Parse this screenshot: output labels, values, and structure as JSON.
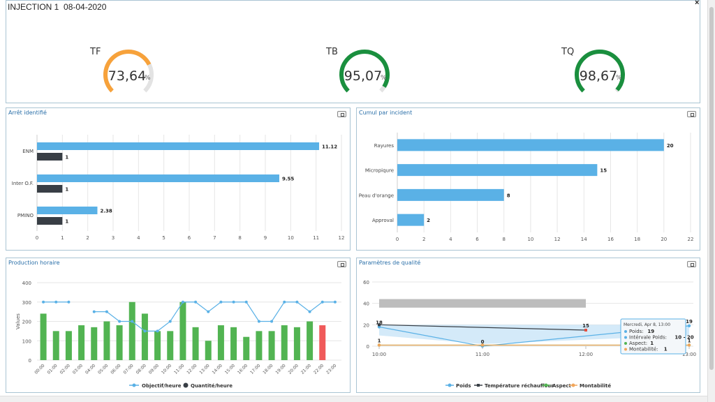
{
  "header": {
    "title": "INJECTION 1",
    "date": "08-04-2020",
    "close_label": "×"
  },
  "gauges": [
    {
      "label": "TF",
      "value": 73.64,
      "value_text": "73,64",
      "unit": "%",
      "color": "#f7a23b"
    },
    {
      "label": "TB",
      "value": 95.07,
      "value_text": "95,07",
      "unit": "%",
      "color": "#1a8f3e"
    },
    {
      "label": "TQ",
      "value": 98.67,
      "value_text": "98,67",
      "unit": "%",
      "color": "#1a8f3e"
    }
  ],
  "chart_data": [
    {
      "id": "arret",
      "type": "bar",
      "orientation": "horizontal",
      "title": "Arrêt identifié",
      "categories": [
        "ENM",
        "Inter O.F.",
        "PMINO"
      ],
      "series": [
        {
          "values": [
            11.12,
            9.55,
            2.38
          ],
          "labels": [
            "11.12",
            "9.55",
            "2.38"
          ],
          "color": "#5ab1e6"
        },
        {
          "values": [
            1,
            1,
            1
          ],
          "labels": [
            "1",
            "1",
            "1"
          ],
          "color": "#383e45"
        }
      ],
      "xlim": [
        0,
        12
      ],
      "xticks": [
        0,
        1,
        2,
        3,
        4,
        5,
        6,
        7,
        8,
        9,
        10,
        11,
        12
      ]
    },
    {
      "id": "cumul",
      "type": "bar",
      "orientation": "horizontal",
      "title": "Cumul par incident",
      "categories": [
        "Rayures",
        "Micropiqure",
        "Peau d'orange",
        "Approval"
      ],
      "values": [
        20,
        15,
        8,
        2
      ],
      "labels": [
        "20",
        "15",
        "8",
        "2"
      ],
      "color": "#5ab1e6",
      "xlim": [
        0,
        22
      ],
      "xticks": [
        0,
        2,
        4,
        6,
        8,
        10,
        12,
        14,
        16,
        18,
        20,
        22
      ]
    },
    {
      "id": "production",
      "type": "bar",
      "title": "Production horaire",
      "ylabel": "Values",
      "categories": [
        "00:00",
        "01:00",
        "02:00",
        "03:00",
        "04:00",
        "05:00",
        "06:00",
        "07:00",
        "08:00",
        "09:00",
        "10:00",
        "11:00",
        "12:00",
        "13:00",
        "14:00",
        "15:00",
        "16:00",
        "17:00",
        "18:00",
        "19:00",
        "20:00",
        "21:00",
        "22:00",
        "23:00"
      ],
      "series": [
        {
          "name": "Objectif/heure",
          "type": "line",
          "color": "#5ab1e6",
          "values": [
            300,
            300,
            300,
            null,
            250,
            250,
            200,
            200,
            150,
            150,
            200,
            300,
            300,
            250,
            300,
            300,
            300,
            200,
            200,
            300,
            300,
            250,
            300,
            300
          ]
        },
        {
          "name": "Quantité/heure",
          "type": "bar",
          "color": "#52b452",
          "values": [
            240,
            150,
            150,
            180,
            170,
            200,
            180,
            300,
            240,
            150,
            150,
            300,
            170,
            100,
            180,
            170,
            120,
            150,
            150,
            180,
            170,
            200,
            180,
            null
          ]
        }
      ],
      "highlight": {
        "index": 22,
        "color": "#f05a5a"
      },
      "ylim": [
        0,
        400
      ],
      "yticks": [
        0,
        100,
        200,
        300,
        400
      ]
    },
    {
      "id": "qualite",
      "type": "line",
      "title": "Paramètres de qualité",
      "x": [
        "10:00",
        "11:00",
        "12:00",
        "13:00"
      ],
      "ylim": [
        0,
        60
      ],
      "yticks": [
        0,
        20,
        40,
        60
      ],
      "gray_band": {
        "from_x": 0,
        "to_x": 2,
        "low": 36,
        "high": 44,
        "color": "#bdbdbd"
      },
      "interval_band": {
        "low": 10,
        "high": 20,
        "color": "#cfe8f8"
      },
      "series": [
        {
          "name": "Poids",
          "color": "#5ab1e6",
          "x": [
            0,
            1,
            3
          ],
          "values": [
            18,
            0,
            19
          ],
          "labels": [
            "18",
            "0",
            "19"
          ]
        },
        {
          "name": "Température réchauffeur",
          "color": "#383e45",
          "x": [
            0,
            2
          ],
          "values": [
            20,
            15
          ],
          "labels": [
            "",
            "15"
          ]
        },
        {
          "name": "Aspect",
          "color": "#52b452",
          "x": [
            0,
            1,
            3
          ],
          "values": [
            1,
            1,
            1
          ],
          "labels": [
            "1",
            "",
            ""
          ]
        },
        {
          "name": "Montabilité",
          "color": "#f1a65b",
          "x": [
            0,
            1,
            3
          ],
          "values": [
            1,
            1,
            1
          ],
          "labels": [
            "",
            "",
            "1"
          ]
        }
      ],
      "tooltip": {
        "date": "Mercredi, Apr 8, 13:00",
        "rows": [
          {
            "color": "#5ab1e6",
            "label": "Poids:",
            "value": "19"
          },
          {
            "color": "#5ab1e6",
            "label": "Intérvale Poids:",
            "value": "10 - 20"
          },
          {
            "color": "#52b452",
            "label": "Aspect:",
            "value": "1"
          },
          {
            "color": "#f1a65b",
            "label": "Montabilité:",
            "value": "1"
          }
        ]
      }
    }
  ]
}
